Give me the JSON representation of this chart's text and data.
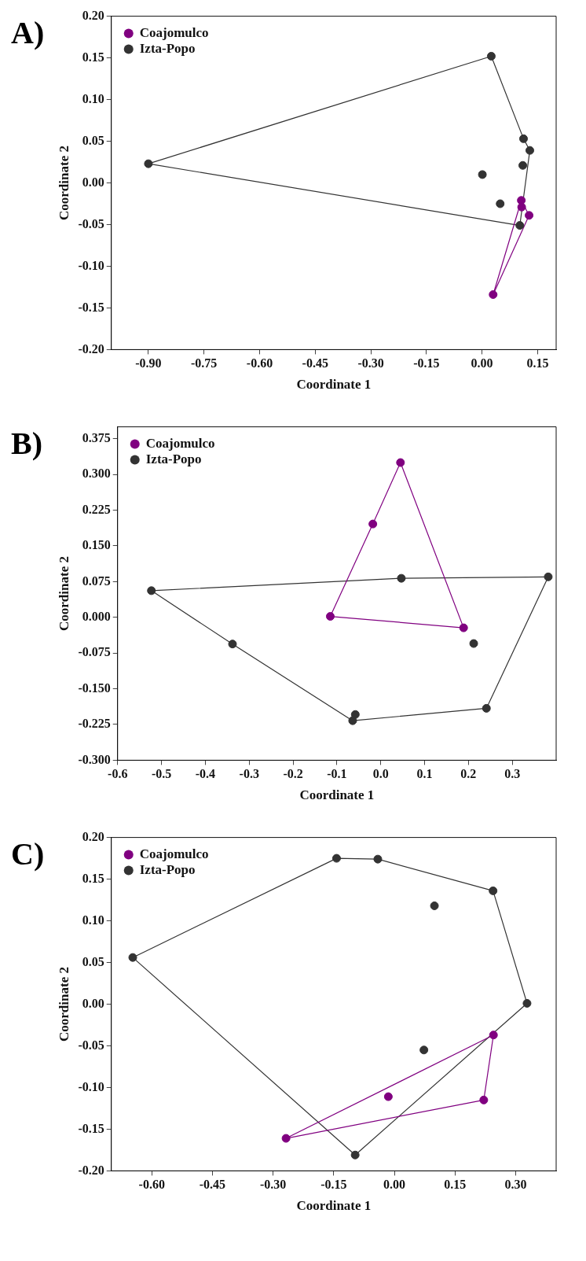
{
  "chart_data": [
    {
      "type": "scatter",
      "title": "A)",
      "xlabel": "Coordinate 1",
      "ylabel": "Coordinate 2",
      "legend": "top left",
      "grid": false,
      "marker": "circle",
      "xlim": [
        -1.0,
        0.2
      ],
      "ylim": [
        -0.2,
        0.2
      ],
      "xticks": [
        {
          "value": -0.9,
          "label": "-0.90"
        },
        {
          "value": -0.75,
          "label": "-0.75"
        },
        {
          "value": -0.6,
          "label": "-0.60"
        },
        {
          "value": -0.45,
          "label": "-0.45"
        },
        {
          "value": -0.3,
          "label": "-0.30"
        },
        {
          "value": -0.15,
          "label": "-0.15"
        },
        {
          "value": 0,
          "label": "0.00"
        },
        {
          "value": 0.15,
          "label": "0.15"
        }
      ],
      "yticks": [
        {
          "value": -0.2,
          "label": "-0.20"
        },
        {
          "value": -0.15,
          "label": "-0.15"
        },
        {
          "value": -0.1,
          "label": "-0.10"
        },
        {
          "value": -0.05,
          "label": "-0.05"
        },
        {
          "value": 0,
          "label": "0.00"
        },
        {
          "value": 0.05,
          "label": "0.05"
        },
        {
          "value": 0.1,
          "label": "0.10"
        },
        {
          "value": 0.15,
          "label": "0.15"
        },
        {
          "value": 0.2,
          "label": "0.20"
        }
      ],
      "series": [
        {
          "name": "Coajomulco",
          "color": "#800080",
          "x": [
            0.106,
            0.107,
            0.127,
            0.03
          ],
          "values": [
            -0.021,
            -0.029,
            -0.039,
            -0.134
          ]
        },
        {
          "name": "Izta-Popo",
          "color": "#333333",
          "x": [
            0.025,
            -0.9,
            0.112,
            0.129,
            0.11,
            0.001,
            0.049,
            0.102
          ],
          "values": [
            0.152,
            0.023,
            0.053,
            0.039,
            0.021,
            0.01,
            -0.025,
            -0.051
          ]
        },
        {
          "color": "#800080",
          "type": "line",
          "marker": "none",
          "x": [
            0.03,
            0.106,
            0.127
          ],
          "values": [
            -0.134,
            -0.021,
            -0.039
          ]
        },
        {
          "color": "#800080",
          "type": "line",
          "marker": "none",
          "x": [
            0.03,
            0.127
          ],
          "values": [
            -0.134,
            -0.039
          ]
        },
        {
          "color": "#333333",
          "type": "line",
          "marker": "none",
          "x": [
            -0.9,
            0.025,
            0.112,
            0.129
          ],
          "values": [
            0.023,
            0.152,
            0.053,
            0.039
          ]
        },
        {
          "color": "#333333",
          "type": "line",
          "marker": "none",
          "x": [
            -0.9,
            0.102,
            0.129
          ],
          "values": [
            0.023,
            -0.051,
            0.039
          ]
        }
      ]
    },
    {
      "type": "scatter",
      "title": "B)",
      "xlabel": "Coordinate 1",
      "ylabel": "Coordinate 2",
      "legend": "top left",
      "grid": false,
      "marker": "circle",
      "xlim": [
        -0.6,
        0.4
      ],
      "ylim": [
        -0.3,
        0.4
      ],
      "xticks": [
        {
          "value": -0.6,
          "label": "-0.6"
        },
        {
          "value": -0.5,
          "label": "-0.5"
        },
        {
          "value": -0.4,
          "label": "-0.4"
        },
        {
          "value": -0.3,
          "label": "-0.3"
        },
        {
          "value": -0.2,
          "label": "-0.2"
        },
        {
          "value": -0.1,
          "label": "-0.1"
        },
        {
          "value": 0,
          "label": "0.0"
        },
        {
          "value": 0.1,
          "label": "0.1"
        },
        {
          "value": 0.2,
          "label": "0.2"
        },
        {
          "value": 0.3,
          "label": "0.3"
        }
      ],
      "yticks": [
        {
          "value": -0.3,
          "label": "-0.300"
        },
        {
          "value": -0.225,
          "label": "-0.225"
        },
        {
          "value": -0.15,
          "label": "-0.150"
        },
        {
          "value": -0.075,
          "label": "-0.075"
        },
        {
          "value": 0,
          "label": "0.000"
        },
        {
          "value": 0.075,
          "label": "0.075"
        },
        {
          "value": 0.15,
          "label": "0.150"
        },
        {
          "value": 0.225,
          "label": "0.225"
        },
        {
          "value": 0.3,
          "label": "0.300"
        },
        {
          "value": 0.375,
          "label": "0.375"
        }
      ],
      "series": [
        {
          "name": "Coajomulco",
          "color": "#800080",
          "x": [
            0.045,
            -0.018,
            -0.115,
            0.189
          ],
          "values": [
            0.325,
            0.196,
            0.002,
            -0.022
          ]
        },
        {
          "name": "Izta-Popo",
          "color": "#333333",
          "x": [
            -0.523,
            0.047,
            0.382,
            -0.338,
            0.212,
            -0.058,
            -0.064,
            0.241
          ],
          "values": [
            0.056,
            0.082,
            0.085,
            -0.056,
            -0.055,
            -0.204,
            -0.217,
            -0.191
          ]
        },
        {
          "color": "#800080",
          "type": "line",
          "marker": "none",
          "x": [
            -0.115,
            -0.018,
            0.045,
            0.189
          ],
          "values": [
            0.002,
            0.196,
            0.325,
            -0.022
          ]
        },
        {
          "color": "#800080",
          "type": "line",
          "marker": "none",
          "x": [
            -0.115,
            0.189
          ],
          "values": [
            0.002,
            -0.022
          ]
        },
        {
          "color": "#333333",
          "type": "line",
          "marker": "none",
          "x": [
            -0.523,
            0.047,
            0.382
          ],
          "values": [
            0.056,
            0.082,
            0.085
          ]
        },
        {
          "color": "#333333",
          "type": "line",
          "marker": "none",
          "x": [
            -0.523,
            -0.338,
            -0.064,
            0.241,
            0.382
          ],
          "values": [
            0.056,
            -0.056,
            -0.217,
            -0.191,
            0.085
          ]
        }
      ]
    },
    {
      "type": "scatter",
      "title": "C)",
      "xlabel": "Coordinate 1",
      "ylabel": "Coordinate 2",
      "legend": "top left",
      "grid": false,
      "marker": "circle",
      "xlim": [
        -0.7,
        0.4
      ],
      "ylim": [
        -0.2,
        0.2
      ],
      "xticks": [
        {
          "value": -0.6,
          "label": "-0.60"
        },
        {
          "value": -0.45,
          "label": "-0.45"
        },
        {
          "value": -0.3,
          "label": "-0.30"
        },
        {
          "value": -0.15,
          "label": "-0.15"
        },
        {
          "value": 0,
          "label": "0.00"
        },
        {
          "value": 0.15,
          "label": "0.15"
        },
        {
          "value": 0.3,
          "label": "0.30"
        }
      ],
      "yticks": [
        {
          "value": -0.2,
          "label": "-0.20"
        },
        {
          "value": -0.15,
          "label": "-0.15"
        },
        {
          "value": -0.1,
          "label": "-0.10"
        },
        {
          "value": -0.05,
          "label": "-0.05"
        },
        {
          "value": 0,
          "label": "0.00"
        },
        {
          "value": 0.05,
          "label": "0.05"
        },
        {
          "value": 0.1,
          "label": "0.10"
        },
        {
          "value": 0.15,
          "label": "0.15"
        },
        {
          "value": 0.2,
          "label": "0.20"
        }
      ],
      "series": [
        {
          "name": "Coajomulco",
          "color": "#800080",
          "x": [
            0.245,
            -0.015,
            0.221,
            -0.268
          ],
          "values": [
            -0.037,
            -0.111,
            -0.115,
            -0.161
          ]
        },
        {
          "name": "Izta-Popo",
          "color": "#333333",
          "x": [
            -0.143,
            -0.041,
            0.244,
            0.099,
            -0.647,
            0.328,
            0.073,
            -0.097
          ],
          "values": [
            0.175,
            0.174,
            0.136,
            0.118,
            0.056,
            0.001,
            -0.055,
            -0.181
          ]
        },
        {
          "color": "#800080",
          "type": "line",
          "marker": "none",
          "x": [
            -0.268,
            0.245
          ],
          "values": [
            -0.161,
            -0.037
          ]
        },
        {
          "color": "#800080",
          "type": "line",
          "marker": "none",
          "x": [
            -0.268,
            0.221,
            0.245
          ],
          "values": [
            -0.161,
            -0.115,
            -0.037
          ]
        },
        {
          "color": "#333333",
          "type": "line",
          "marker": "none",
          "x": [
            -0.647,
            -0.143,
            -0.041,
            0.244,
            0.328
          ],
          "values": [
            0.056,
            0.175,
            0.174,
            0.136,
            0.001
          ]
        },
        {
          "color": "#333333",
          "type": "line",
          "marker": "none",
          "x": [
            -0.647,
            -0.097,
            0.328
          ],
          "values": [
            0.056,
            -0.181,
            0.001
          ]
        }
      ]
    }
  ]
}
